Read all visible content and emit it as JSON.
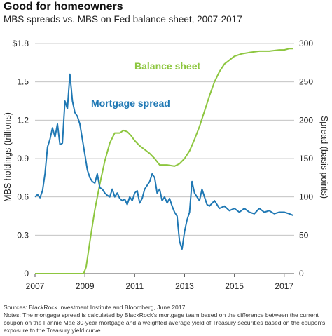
{
  "title": "Good for homeowners",
  "subtitle": "MBS spreads vs. MBS on Fed balance sheet, 2007-2017",
  "notes": {
    "sources": "Sources: BlackRock Investment Institute and Bloomberg, June 2017.",
    "notes": "Notes: The mortgage spread is calculated by BlackRock's mortgage team based on the difference between the current coupon on the Fannie Mae 30-year mortgage and a weighted average yield of Treasury securities based on the coupon's exposure to the Treasury yield curve."
  },
  "chart_data": {
    "type": "line",
    "x_ticks": [
      "2007",
      "2009",
      "2011",
      "2013",
      "2015",
      "2017"
    ],
    "x_range": [
      2007,
      2017.4
    ],
    "left_axis": {
      "label": "MBS holdings (trillions)",
      "ticks": [
        "$1.8",
        "1.5",
        "1.2",
        "0.9",
        "0.6",
        "0.3",
        "0"
      ],
      "range": [
        0,
        1.8
      ]
    },
    "right_axis": {
      "label": "Spread (basis points)",
      "ticks": [
        "300",
        "250",
        "200",
        "150",
        "100",
        "50",
        "0"
      ],
      "range": [
        0,
        300
      ]
    },
    "grid": "horizontal",
    "series": [
      {
        "name": "Balance sheet",
        "axis": "left",
        "color": "#8dc63f",
        "x": [
          2007.0,
          2008.95,
          2009.05,
          2009.2,
          2009.4,
          2009.6,
          2009.8,
          2010.0,
          2010.2,
          2010.4,
          2010.55,
          2010.7,
          2010.85,
          2011.0,
          2011.2,
          2011.4,
          2011.6,
          2011.8,
          2012.0,
          2012.3,
          2012.6,
          2012.8,
          2013.0,
          2013.2,
          2013.4,
          2013.6,
          2013.8,
          2014.0,
          2014.2,
          2014.4,
          2014.6,
          2014.8,
          2015.0,
          2015.3,
          2015.6,
          2016.0,
          2016.4,
          2016.8,
          2017.0,
          2017.2,
          2017.35
        ],
        "values": [
          0,
          0,
          0.05,
          0.25,
          0.5,
          0.7,
          0.88,
          1.02,
          1.1,
          1.1,
          1.12,
          1.11,
          1.08,
          1.04,
          1.0,
          0.97,
          0.94,
          0.9,
          0.85,
          0.85,
          0.84,
          0.86,
          0.9,
          0.96,
          1.05,
          1.15,
          1.27,
          1.39,
          1.5,
          1.58,
          1.64,
          1.67,
          1.7,
          1.72,
          1.73,
          1.74,
          1.74,
          1.75,
          1.75,
          1.76,
          1.76
        ]
      },
      {
        "name": "Mortgage spread",
        "axis": "right",
        "color": "#1f78b4",
        "x": [
          2007.0,
          2007.1,
          2007.2,
          2007.3,
          2007.4,
          2007.5,
          2007.6,
          2007.7,
          2007.8,
          2007.9,
          2008.0,
          2008.1,
          2008.2,
          2008.3,
          2008.4,
          2008.5,
          2008.6,
          2008.7,
          2008.8,
          2008.9,
          2009.0,
          2009.1,
          2009.2,
          2009.3,
          2009.4,
          2009.5,
          2009.6,
          2009.7,
          2009.8,
          2009.9,
          2010.0,
          2010.1,
          2010.2,
          2010.3,
          2010.4,
          2010.5,
          2010.6,
          2010.7,
          2010.8,
          2010.9,
          2011.0,
          2011.1,
          2011.2,
          2011.3,
          2011.4,
          2011.5,
          2011.6,
          2011.7,
          2011.8,
          2011.9,
          2012.0,
          2012.1,
          2012.2,
          2012.3,
          2012.4,
          2012.5,
          2012.6,
          2012.7,
          2012.8,
          2012.9,
          2013.0,
          2013.1,
          2013.2,
          2013.3,
          2013.4,
          2013.5,
          2013.6,
          2013.7,
          2013.8,
          2013.9,
          2014.0,
          2014.2,
          2014.4,
          2014.6,
          2014.8,
          2015.0,
          2015.2,
          2015.4,
          2015.6,
          2015.8,
          2016.0,
          2016.2,
          2016.4,
          2016.6,
          2016.8,
          2017.0,
          2017.2,
          2017.35
        ],
        "values": [
          100,
          103,
          99,
          108,
          130,
          165,
          175,
          190,
          178,
          195,
          168,
          170,
          225,
          215,
          260,
          225,
          210,
          205,
          195,
          175,
          155,
          135,
          125,
          120,
          118,
          130,
          112,
          110,
          105,
          102,
          100,
          110,
          100,
          105,
          98,
          95,
          97,
          90,
          100,
          95,
          105,
          108,
          92,
          98,
          110,
          115,
          120,
          130,
          125,
          105,
          110,
          95,
          100,
          92,
          98,
          88,
          80,
          75,
          42,
          32,
          55,
          70,
          80,
          120,
          105,
          100,
          95,
          110,
          100,
          90,
          88,
          95,
          85,
          88,
          82,
          85,
          80,
          85,
          80,
          78,
          85,
          80,
          82,
          78,
          80,
          80,
          78,
          76
        ]
      }
    ],
    "annotations": [
      {
        "text": "Balance sheet",
        "color": "#8dc63f"
      },
      {
        "text": "Mortgage spread",
        "color": "#1f78b4"
      }
    ]
  }
}
